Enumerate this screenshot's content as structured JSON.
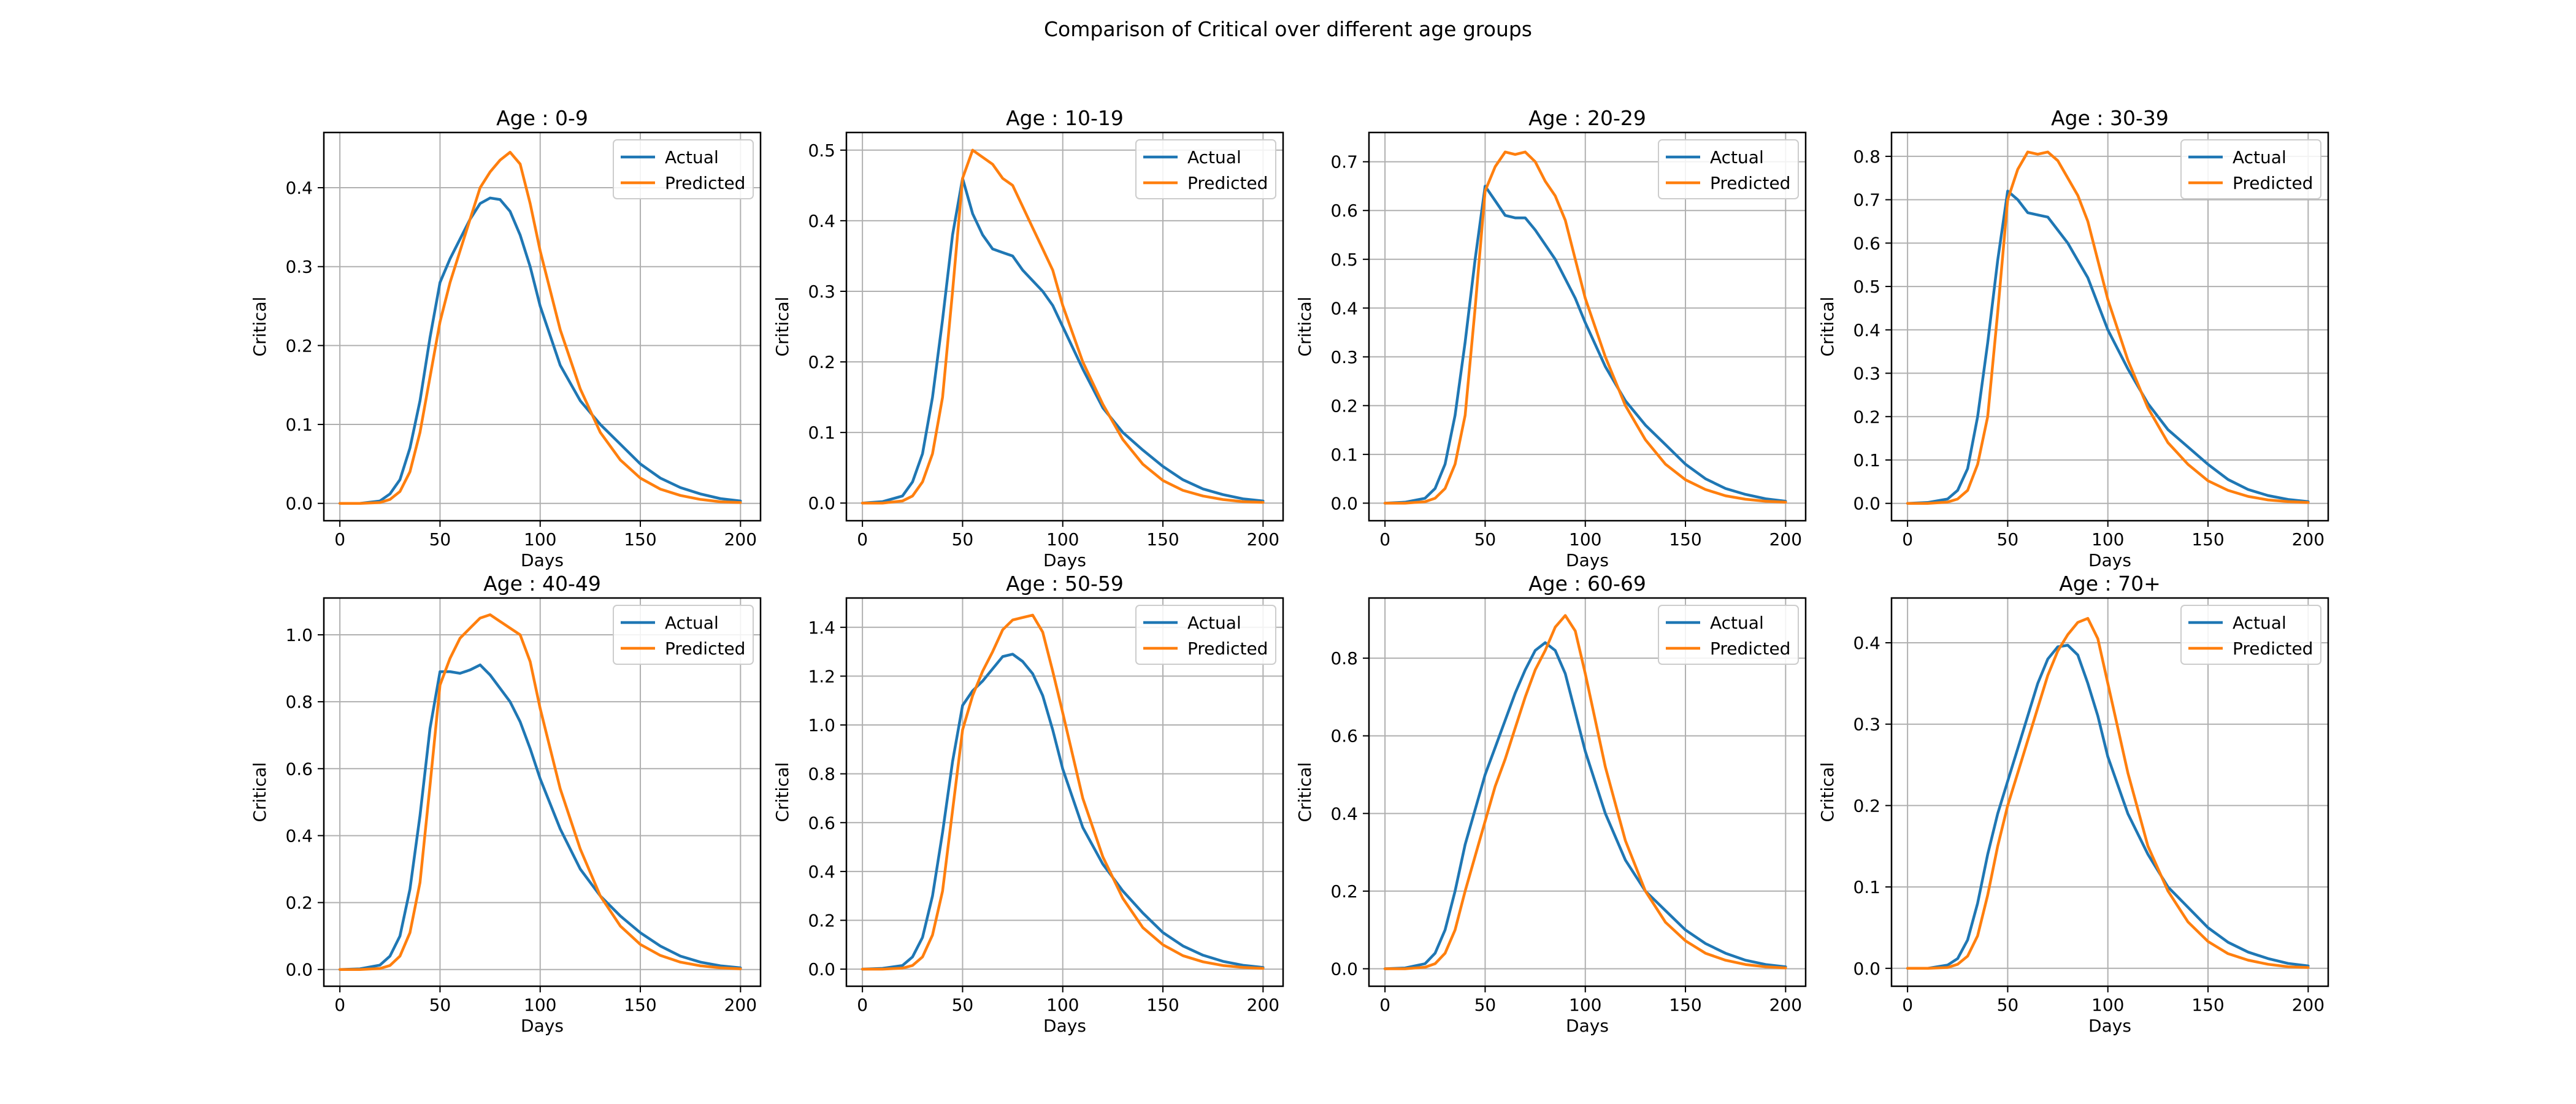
{
  "figure_title": "Comparison of Critical over different age groups",
  "colors": {
    "actual": "#1f77b4",
    "predicted": "#ff7f0e",
    "grid": "#b0b0b0",
    "frame": "#000000"
  },
  "chart_data": [
    {
      "type": "line",
      "title": "Age : 0-9",
      "xlabel": "Days",
      "ylabel": "Critical",
      "xlim": [
        -8,
        210
      ],
      "ylim": [
        -0.022,
        0.47
      ],
      "xticks": [
        0,
        50,
        100,
        150,
        200
      ],
      "yticks": [
        0.0,
        0.1,
        0.2,
        0.3,
        0.4
      ],
      "grid": true,
      "legend_position": "upper right",
      "x": [
        0,
        10,
        20,
        25,
        30,
        35,
        40,
        45,
        50,
        55,
        60,
        65,
        70,
        75,
        80,
        85,
        90,
        95,
        100,
        110,
        120,
        130,
        140,
        150,
        160,
        170,
        180,
        190,
        200
      ],
      "series": [
        {
          "name": "Actual",
          "values": [
            0.0,
            0.0,
            0.003,
            0.012,
            0.03,
            0.07,
            0.13,
            0.21,
            0.28,
            0.31,
            0.335,
            0.36,
            0.38,
            0.387,
            0.385,
            0.37,
            0.34,
            0.3,
            0.25,
            0.175,
            0.13,
            0.1,
            0.075,
            0.05,
            0.032,
            0.02,
            0.012,
            0.006,
            0.003
          ]
        },
        {
          "name": "Predicted",
          "values": [
            0.0,
            0.0,
            0.001,
            0.005,
            0.015,
            0.04,
            0.09,
            0.16,
            0.23,
            0.28,
            0.32,
            0.36,
            0.4,
            0.42,
            0.435,
            0.445,
            0.43,
            0.38,
            0.32,
            0.22,
            0.145,
            0.09,
            0.055,
            0.032,
            0.018,
            0.01,
            0.005,
            0.002,
            0.001
          ]
        }
      ]
    },
    {
      "type": "line",
      "title": "Age : 10-19",
      "xlabel": "Days",
      "ylabel": "Critical",
      "xlim": [
        -8,
        210
      ],
      "ylim": [
        -0.025,
        0.525
      ],
      "xticks": [
        0,
        50,
        100,
        150,
        200
      ],
      "yticks": [
        0.0,
        0.1,
        0.2,
        0.3,
        0.4,
        0.5
      ],
      "grid": true,
      "legend_position": "upper right",
      "x": [
        0,
        10,
        20,
        25,
        30,
        35,
        40,
        45,
        50,
        55,
        60,
        65,
        70,
        75,
        80,
        85,
        90,
        95,
        100,
        110,
        120,
        130,
        140,
        150,
        160,
        170,
        180,
        190,
        200
      ],
      "series": [
        {
          "name": "Actual",
          "values": [
            0.0,
            0.002,
            0.01,
            0.03,
            0.07,
            0.15,
            0.26,
            0.38,
            0.46,
            0.41,
            0.38,
            0.36,
            0.355,
            0.35,
            0.33,
            0.315,
            0.3,
            0.28,
            0.25,
            0.19,
            0.135,
            0.1,
            0.075,
            0.052,
            0.033,
            0.02,
            0.012,
            0.006,
            0.003
          ]
        },
        {
          "name": "Predicted",
          "values": [
            0.0,
            0.0,
            0.003,
            0.01,
            0.03,
            0.07,
            0.15,
            0.3,
            0.46,
            0.5,
            0.49,
            0.48,
            0.46,
            0.45,
            0.42,
            0.39,
            0.36,
            0.33,
            0.28,
            0.2,
            0.14,
            0.09,
            0.055,
            0.032,
            0.018,
            0.01,
            0.005,
            0.002,
            0.001
          ]
        }
      ]
    },
    {
      "type": "line",
      "title": "Age : 20-29",
      "xlabel": "Days",
      "ylabel": "Critical",
      "xlim": [
        -8,
        210
      ],
      "ylim": [
        -0.036,
        0.76
      ],
      "xticks": [
        0,
        50,
        100,
        150,
        200
      ],
      "yticks": [
        0.0,
        0.1,
        0.2,
        0.3,
        0.4,
        0.5,
        0.6,
        0.7
      ],
      "grid": true,
      "legend_position": "upper right",
      "x": [
        0,
        10,
        20,
        25,
        30,
        35,
        40,
        45,
        50,
        55,
        60,
        65,
        70,
        75,
        80,
        85,
        90,
        95,
        100,
        110,
        120,
        130,
        140,
        150,
        160,
        170,
        180,
        190,
        200
      ],
      "series": [
        {
          "name": "Actual",
          "values": [
            0.0,
            0.002,
            0.01,
            0.03,
            0.08,
            0.18,
            0.33,
            0.5,
            0.65,
            0.62,
            0.59,
            0.585,
            0.585,
            0.56,
            0.53,
            0.5,
            0.46,
            0.42,
            0.37,
            0.28,
            0.21,
            0.16,
            0.12,
            0.08,
            0.05,
            0.03,
            0.018,
            0.009,
            0.004
          ]
        },
        {
          "name": "Predicted",
          "values": [
            0.0,
            0.0,
            0.003,
            0.01,
            0.03,
            0.08,
            0.18,
            0.4,
            0.64,
            0.69,
            0.72,
            0.715,
            0.72,
            0.7,
            0.66,
            0.63,
            0.58,
            0.5,
            0.42,
            0.3,
            0.2,
            0.13,
            0.08,
            0.048,
            0.028,
            0.015,
            0.008,
            0.004,
            0.002
          ]
        }
      ]
    },
    {
      "type": "line",
      "title": "Age : 30-39",
      "xlabel": "Days",
      "ylabel": "Critical",
      "xlim": [
        -8,
        210
      ],
      "ylim": [
        -0.04,
        0.855
      ],
      "xticks": [
        0,
        50,
        100,
        150,
        200
      ],
      "yticks": [
        0.0,
        0.1,
        0.2,
        0.3,
        0.4,
        0.5,
        0.6,
        0.7,
        0.8
      ],
      "grid": true,
      "legend_position": "upper right",
      "x": [
        0,
        10,
        20,
        25,
        30,
        35,
        40,
        45,
        50,
        55,
        60,
        65,
        70,
        75,
        80,
        85,
        90,
        95,
        100,
        110,
        120,
        130,
        140,
        150,
        160,
        170,
        180,
        190,
        200
      ],
      "series": [
        {
          "name": "Actual",
          "values": [
            0.0,
            0.002,
            0.01,
            0.03,
            0.08,
            0.2,
            0.37,
            0.56,
            0.72,
            0.7,
            0.67,
            0.665,
            0.66,
            0.63,
            0.6,
            0.56,
            0.52,
            0.46,
            0.4,
            0.31,
            0.23,
            0.17,
            0.13,
            0.09,
            0.055,
            0.032,
            0.018,
            0.009,
            0.004
          ]
        },
        {
          "name": "Predicted",
          "values": [
            0.0,
            0.0,
            0.003,
            0.01,
            0.03,
            0.09,
            0.2,
            0.44,
            0.7,
            0.77,
            0.81,
            0.805,
            0.81,
            0.79,
            0.75,
            0.71,
            0.65,
            0.56,
            0.47,
            0.33,
            0.22,
            0.14,
            0.09,
            0.052,
            0.03,
            0.016,
            0.008,
            0.004,
            0.002
          ]
        }
      ]
    },
    {
      "type": "line",
      "title": "Age : 40-49",
      "xlabel": "Days",
      "ylabel": "Critical",
      "xlim": [
        -8,
        210
      ],
      "ylim": [
        -0.05,
        1.11
      ],
      "xticks": [
        0,
        50,
        100,
        150,
        200
      ],
      "yticks": [
        0.0,
        0.2,
        0.4,
        0.6,
        0.8,
        1.0
      ],
      "grid": true,
      "legend_position": "upper right",
      "x": [
        0,
        10,
        20,
        25,
        30,
        35,
        40,
        45,
        50,
        55,
        60,
        65,
        70,
        75,
        80,
        85,
        90,
        95,
        100,
        110,
        120,
        130,
        140,
        150,
        160,
        170,
        180,
        190,
        200
      ],
      "series": [
        {
          "name": "Actual",
          "values": [
            0.0,
            0.002,
            0.013,
            0.04,
            0.1,
            0.24,
            0.46,
            0.72,
            0.89,
            0.89,
            0.885,
            0.895,
            0.91,
            0.88,
            0.84,
            0.8,
            0.74,
            0.66,
            0.57,
            0.42,
            0.3,
            0.22,
            0.16,
            0.11,
            0.07,
            0.04,
            0.022,
            0.011,
            0.005
          ]
        },
        {
          "name": "Predicted",
          "values": [
            0.0,
            0.0,
            0.003,
            0.012,
            0.04,
            0.11,
            0.26,
            0.55,
            0.85,
            0.93,
            0.99,
            1.02,
            1.05,
            1.06,
            1.04,
            1.02,
            1.0,
            0.92,
            0.78,
            0.54,
            0.36,
            0.22,
            0.13,
            0.075,
            0.042,
            0.022,
            0.011,
            0.005,
            0.002
          ]
        }
      ]
    },
    {
      "type": "line",
      "title": "Age : 50-59",
      "xlabel": "Days",
      "ylabel": "Critical",
      "xlim": [
        -8,
        210
      ],
      "ylim": [
        -0.07,
        1.52
      ],
      "xticks": [
        0,
        50,
        100,
        150,
        200
      ],
      "yticks": [
        0.0,
        0.2,
        0.4,
        0.6,
        0.8,
        1.0,
        1.2,
        1.4
      ],
      "grid": true,
      "legend_position": "upper right",
      "x": [
        0,
        10,
        20,
        25,
        30,
        35,
        40,
        45,
        50,
        55,
        60,
        65,
        70,
        75,
        80,
        85,
        90,
        95,
        100,
        110,
        120,
        130,
        140,
        150,
        160,
        170,
        180,
        190,
        200
      ],
      "series": [
        {
          "name": "Actual",
          "values": [
            0.0,
            0.003,
            0.015,
            0.05,
            0.13,
            0.3,
            0.56,
            0.85,
            1.08,
            1.14,
            1.18,
            1.23,
            1.28,
            1.29,
            1.26,
            1.21,
            1.12,
            0.98,
            0.82,
            0.58,
            0.43,
            0.32,
            0.23,
            0.15,
            0.095,
            0.057,
            0.032,
            0.016,
            0.007
          ]
        },
        {
          "name": "Predicted",
          "values": [
            0.0,
            0.0,
            0.004,
            0.015,
            0.05,
            0.14,
            0.32,
            0.65,
            0.98,
            1.12,
            1.22,
            1.3,
            1.39,
            1.43,
            1.44,
            1.45,
            1.38,
            1.22,
            1.05,
            0.7,
            0.46,
            0.29,
            0.17,
            0.1,
            0.055,
            0.03,
            0.015,
            0.007,
            0.003
          ]
        }
      ]
    },
    {
      "type": "line",
      "title": "Age : 60-69",
      "xlabel": "Days",
      "ylabel": "Critical",
      "xlim": [
        -8,
        210
      ],
      "ylim": [
        -0.045,
        0.955
      ],
      "xticks": [
        0,
        50,
        100,
        150,
        200
      ],
      "yticks": [
        0.0,
        0.2,
        0.4,
        0.6,
        0.8
      ],
      "grid": true,
      "legend_position": "upper right",
      "x": [
        0,
        10,
        20,
        25,
        30,
        35,
        40,
        45,
        50,
        55,
        60,
        65,
        70,
        75,
        80,
        85,
        90,
        95,
        100,
        110,
        120,
        130,
        140,
        150,
        160,
        170,
        180,
        190,
        200
      ],
      "series": [
        {
          "name": "Actual",
          "values": [
            0.0,
            0.002,
            0.013,
            0.04,
            0.1,
            0.2,
            0.32,
            0.41,
            0.5,
            0.57,
            0.64,
            0.71,
            0.77,
            0.82,
            0.84,
            0.82,
            0.76,
            0.66,
            0.56,
            0.4,
            0.28,
            0.2,
            0.15,
            0.1,
            0.065,
            0.04,
            0.022,
            0.011,
            0.005
          ]
        },
        {
          "name": "Predicted",
          "values": [
            0.0,
            0.0,
            0.004,
            0.013,
            0.04,
            0.1,
            0.2,
            0.29,
            0.38,
            0.47,
            0.54,
            0.62,
            0.7,
            0.77,
            0.82,
            0.88,
            0.91,
            0.87,
            0.76,
            0.52,
            0.33,
            0.2,
            0.12,
            0.072,
            0.04,
            0.022,
            0.011,
            0.005,
            0.002
          ]
        }
      ]
    },
    {
      "type": "line",
      "title": "Age : 70+",
      "xlabel": "Days",
      "ylabel": "Critical",
      "xlim": [
        -8,
        210
      ],
      "ylim": [
        -0.022,
        0.455
      ],
      "xticks": [
        0,
        50,
        100,
        150,
        200
      ],
      "yticks": [
        0.0,
        0.1,
        0.2,
        0.3,
        0.4
      ],
      "grid": true,
      "legend_position": "upper right",
      "x": [
        0,
        10,
        20,
        25,
        30,
        35,
        40,
        45,
        50,
        55,
        60,
        65,
        70,
        75,
        80,
        85,
        90,
        95,
        100,
        110,
        120,
        130,
        140,
        150,
        160,
        170,
        180,
        190,
        200
      ],
      "series": [
        {
          "name": "Actual",
          "values": [
            0.0,
            0.0,
            0.004,
            0.012,
            0.035,
            0.08,
            0.14,
            0.19,
            0.23,
            0.27,
            0.31,
            0.35,
            0.38,
            0.395,
            0.397,
            0.385,
            0.35,
            0.31,
            0.26,
            0.19,
            0.14,
            0.1,
            0.075,
            0.05,
            0.032,
            0.02,
            0.012,
            0.006,
            0.003
          ]
        },
        {
          "name": "Predicted",
          "values": [
            0.0,
            0.0,
            0.001,
            0.005,
            0.015,
            0.04,
            0.09,
            0.15,
            0.2,
            0.24,
            0.28,
            0.32,
            0.36,
            0.39,
            0.41,
            0.425,
            0.43,
            0.405,
            0.35,
            0.24,
            0.15,
            0.095,
            0.057,
            0.033,
            0.018,
            0.01,
            0.005,
            0.002,
            0.001
          ]
        }
      ]
    }
  ]
}
